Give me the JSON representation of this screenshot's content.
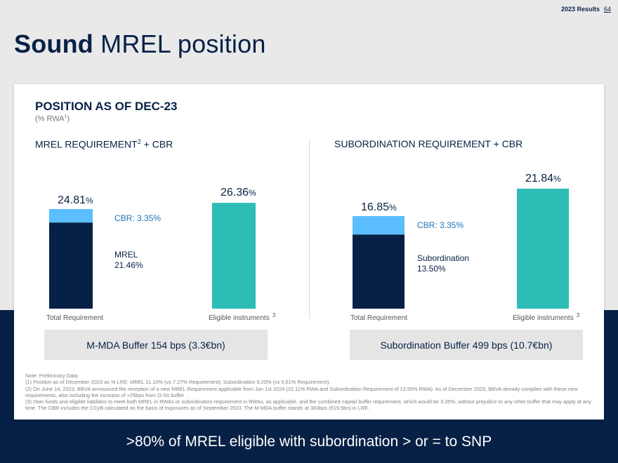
{
  "header": {
    "label": "2023 Results",
    "page": "64"
  },
  "title": {
    "strong": "Sound",
    "rest": " MREL position"
  },
  "section": {
    "title": "POSITION AS OF DEC-23",
    "subtitle_prefix": "(% RWA",
    "subtitle_sup": "1",
    "subtitle_suffix": ")"
  },
  "colors": {
    "navy": "#072146",
    "light_blue": "#5bbeff",
    "teal": "#2dbdb6",
    "label_blue": "#1973b8"
  },
  "chart_data": [
    {
      "type": "bar",
      "stacked": true,
      "title": "MREL REQUIREMENT",
      "title_sup": "2",
      "title_suffix": "  + CBR",
      "categories": [
        "Total Requirement",
        "Eligible instruments"
      ],
      "category_sups": [
        "",
        "3"
      ],
      "totals": [
        24.81,
        26.36
      ],
      "total_labels": [
        "24.81",
        "26.36"
      ],
      "unit": "%",
      "series": [
        {
          "name": "MREL",
          "label": "MREL",
          "value_label": "21.46%",
          "values": [
            21.46,
            null
          ],
          "color": "#072146"
        },
        {
          "name": "CBR",
          "label": "CBR: 3.35%",
          "values": [
            3.35,
            null
          ],
          "color": "#5bbeff"
        },
        {
          "name": "Eligible instruments",
          "values": [
            null,
            26.36
          ],
          "color": "#2dbdb6"
        }
      ],
      "ylim": [
        0,
        28
      ]
    },
    {
      "type": "bar",
      "stacked": true,
      "title": "SUBORDINATION REQUIREMENT + CBR",
      "title_sup": "",
      "title_suffix": "",
      "categories": [
        "Total Requirement",
        "Eligible instruments"
      ],
      "category_sups": [
        "",
        "3"
      ],
      "totals": [
        16.85,
        21.84
      ],
      "total_labels": [
        "16.85",
        "21.84"
      ],
      "unit": "%",
      "series": [
        {
          "name": "Subordination",
          "label": "Subordination",
          "value_label": "13.50%",
          "values": [
            13.5,
            null
          ],
          "color": "#072146"
        },
        {
          "name": "CBR",
          "label": "CBR: 3.35%",
          "values": [
            3.35,
            null
          ],
          "color": "#5bbeff"
        },
        {
          "name": "Eligible instruments",
          "values": [
            null,
            21.84
          ],
          "color": "#2dbdb6"
        }
      ],
      "ylim": [
        0,
        23.5
      ]
    }
  ],
  "buffers": {
    "left": "M-MDA Buffer 154 bps (3.3€bn)",
    "right": "Subordination Buffer 499 bps (10.7€bn)"
  },
  "footnotes": [
    "Note: Preliminary Data.",
    "(1) Position as of December 2023 as % LRE: MREL 11.10% (vs 7.27% Requirement); Subordination 9.20% (vs 5.61% Requirement).",
    "(2) On June 14, 2023, BBVA announced the reception of a new MREL Requirement applicable from Jan 1st 2024 (22.11% RWA and Subordination Requirement of 13.50% RWA). As of December 2023, BBVA already complies with these new requirements, also including the increase of +25bps from O-SII buffer .",
    "(3) Own funds and eligible liabilities to meet both MREL in RWAs or subordination requirement in RWAs, as applicable, and the combined capital buffer requirement, which would be 3.35%, without prejudice to any other buffer that may apply at any time. The CBR includes the CCyB calculated on the basis of exposures as of September 2023. The M-MDA buffer stands at 383bps (€19.5bn) in LRE."
  ],
  "bottom_message": ">80% of MREL eligible with subordination > or = to SNP"
}
